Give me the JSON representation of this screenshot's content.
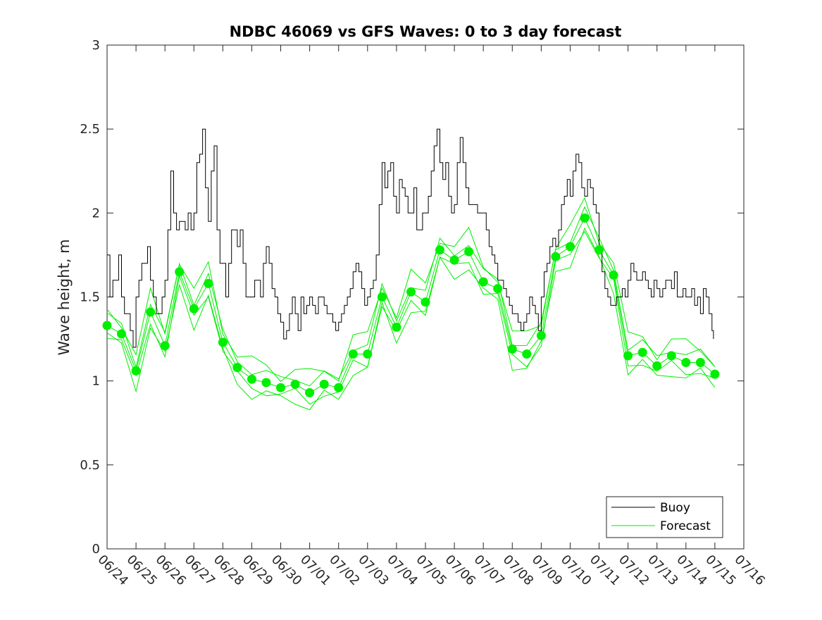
{
  "chart_data": {
    "type": "line",
    "title": "NDBC 46069 vs GFS Waves: 0 to 3 day forecast",
    "xlabel": "",
    "ylabel": "Wave height, m",
    "ylim": [
      0,
      3
    ],
    "xlim": [
      "06/24",
      "07/16"
    ],
    "x_tick_labels": [
      "06/24",
      "06/25",
      "06/26",
      "06/27",
      "06/28",
      "06/29",
      "06/30",
      "07/01",
      "07/02",
      "07/03",
      "07/04",
      "07/05",
      "07/06",
      "07/07",
      "07/08",
      "07/09",
      "07/10",
      "07/11",
      "07/12",
      "07/13",
      "07/14",
      "07/15",
      "07/16"
    ],
    "y_ticks": [
      0,
      0.5,
      1,
      1.5,
      2,
      2.5,
      3
    ],
    "y_tick_labels": [
      "0",
      "0.5",
      "1",
      "1.5",
      "2",
      "2.5",
      "3"
    ],
    "grid": false,
    "legend_position": "bottom-right",
    "colors": {
      "buoy": "#000000",
      "forecast": "#00ee00",
      "axis": "#262626"
    },
    "series": [
      {
        "name": "Buoy",
        "x_units": "days since 06/24",
        "points": [
          [
            0.0,
            1.75
          ],
          [
            0.1,
            1.5
          ],
          [
            0.2,
            1.6
          ],
          [
            0.3,
            1.6
          ],
          [
            0.4,
            1.75
          ],
          [
            0.5,
            1.5
          ],
          [
            0.6,
            1.4
          ],
          [
            0.7,
            1.4
          ],
          [
            0.8,
            1.3
          ],
          [
            0.9,
            1.2
          ],
          [
            1.0,
            1.5
          ],
          [
            1.1,
            1.6
          ],
          [
            1.2,
            1.7
          ],
          [
            1.3,
            1.7
          ],
          [
            1.4,
            1.8
          ],
          [
            1.5,
            1.6
          ],
          [
            1.6,
            1.5
          ],
          [
            1.7,
            1.4
          ],
          [
            1.8,
            1.4
          ],
          [
            1.9,
            1.5
          ],
          [
            2.0,
            1.6
          ],
          [
            2.1,
            1.9
          ],
          [
            2.2,
            2.25
          ],
          [
            2.3,
            2.0
          ],
          [
            2.4,
            1.9
          ],
          [
            2.5,
            1.95
          ],
          [
            2.6,
            1.95
          ],
          [
            2.7,
            1.9
          ],
          [
            2.8,
            2.0
          ],
          [
            2.9,
            1.9
          ],
          [
            3.0,
            2.0
          ],
          [
            3.1,
            2.3
          ],
          [
            3.2,
            2.35
          ],
          [
            3.3,
            2.5
          ],
          [
            3.4,
            2.15
          ],
          [
            3.5,
            1.95
          ],
          [
            3.6,
            2.25
          ],
          [
            3.7,
            2.4
          ],
          [
            3.8,
            1.9
          ],
          [
            3.9,
            1.7
          ],
          [
            4.0,
            1.7
          ],
          [
            4.1,
            1.5
          ],
          [
            4.2,
            1.7
          ],
          [
            4.3,
            1.9
          ],
          [
            4.4,
            1.9
          ],
          [
            4.5,
            1.8
          ],
          [
            4.6,
            1.9
          ],
          [
            4.7,
            1.7
          ],
          [
            4.8,
            1.5
          ],
          [
            4.9,
            1.5
          ],
          [
            5.0,
            1.5
          ],
          [
            5.1,
            1.6
          ],
          [
            5.2,
            1.6
          ],
          [
            5.3,
            1.5
          ],
          [
            5.4,
            1.7
          ],
          [
            5.5,
            1.8
          ],
          [
            5.6,
            1.7
          ],
          [
            5.7,
            1.55
          ],
          [
            5.8,
            1.5
          ],
          [
            5.9,
            1.4
          ],
          [
            6.0,
            1.35
          ],
          [
            6.1,
            1.25
          ],
          [
            6.2,
            1.3
          ],
          [
            6.3,
            1.4
          ],
          [
            6.4,
            1.5
          ],
          [
            6.5,
            1.4
          ],
          [
            6.6,
            1.3
          ],
          [
            6.7,
            1.5
          ],
          [
            6.8,
            1.4
          ],
          [
            6.9,
            1.45
          ],
          [
            7.0,
            1.5
          ],
          [
            7.1,
            1.45
          ],
          [
            7.2,
            1.4
          ],
          [
            7.3,
            1.5
          ],
          [
            7.4,
            1.5
          ],
          [
            7.5,
            1.45
          ],
          [
            7.6,
            1.4
          ],
          [
            7.7,
            1.4
          ],
          [
            7.8,
            1.35
          ],
          [
            7.9,
            1.3
          ],
          [
            8.0,
            1.35
          ],
          [
            8.1,
            1.4
          ],
          [
            8.2,
            1.45
          ],
          [
            8.3,
            1.5
          ],
          [
            8.4,
            1.55
          ],
          [
            8.5,
            1.65
          ],
          [
            8.6,
            1.7
          ],
          [
            8.7,
            1.65
          ],
          [
            8.8,
            1.55
          ],
          [
            8.9,
            1.45
          ],
          [
            9.0,
            1.5
          ],
          [
            9.1,
            1.55
          ],
          [
            9.2,
            1.6
          ],
          [
            9.3,
            1.75
          ],
          [
            9.4,
            2.05
          ],
          [
            9.5,
            2.3
          ],
          [
            9.6,
            2.15
          ],
          [
            9.7,
            2.25
          ],
          [
            9.8,
            2.3
          ],
          [
            9.9,
            2.1
          ],
          [
            10.0,
            2.0
          ],
          [
            10.1,
            2.2
          ],
          [
            10.2,
            2.15
          ],
          [
            10.3,
            2.1
          ],
          [
            10.4,
            2.0
          ],
          [
            10.5,
            2.0
          ],
          [
            10.6,
            2.15
          ],
          [
            10.7,
            1.9
          ],
          [
            10.8,
            1.9
          ],
          [
            10.9,
            2.0
          ],
          [
            11.0,
            2.0
          ],
          [
            11.1,
            2.1
          ],
          [
            11.2,
            2.25
          ],
          [
            11.3,
            2.4
          ],
          [
            11.4,
            2.5
          ],
          [
            11.5,
            2.3
          ],
          [
            11.6,
            2.2
          ],
          [
            11.7,
            2.3
          ],
          [
            11.8,
            2.1
          ],
          [
            11.9,
            2.0
          ],
          [
            12.0,
            2.05
          ],
          [
            12.1,
            2.3
          ],
          [
            12.2,
            2.45
          ],
          [
            12.3,
            2.3
          ],
          [
            12.4,
            2.15
          ],
          [
            12.5,
            2.05
          ],
          [
            12.6,
            2.05
          ],
          [
            12.7,
            2.05
          ],
          [
            12.8,
            2.0
          ],
          [
            12.9,
            2.0
          ],
          [
            13.0,
            2.0
          ],
          [
            13.1,
            1.9
          ],
          [
            13.2,
            1.8
          ],
          [
            13.3,
            1.75
          ],
          [
            13.4,
            1.7
          ],
          [
            13.5,
            1.6
          ],
          [
            13.6,
            1.6
          ],
          [
            13.7,
            1.55
          ],
          [
            13.8,
            1.5
          ],
          [
            13.9,
            1.45
          ],
          [
            14.0,
            1.4
          ],
          [
            14.1,
            1.4
          ],
          [
            14.2,
            1.35
          ],
          [
            14.3,
            1.3
          ],
          [
            14.4,
            1.35
          ],
          [
            14.5,
            1.4
          ],
          [
            14.6,
            1.5
          ],
          [
            14.7,
            1.45
          ],
          [
            14.8,
            1.4
          ],
          [
            14.9,
            1.3
          ],
          [
            15.0,
            1.5
          ],
          [
            15.1,
            1.65
          ],
          [
            15.2,
            1.7
          ],
          [
            15.3,
            1.8
          ],
          [
            15.4,
            1.85
          ],
          [
            15.5,
            1.8
          ],
          [
            15.6,
            1.9
          ],
          [
            15.7,
            2.05
          ],
          [
            15.8,
            2.1
          ],
          [
            15.9,
            2.2
          ],
          [
            16.0,
            2.1
          ],
          [
            16.1,
            2.25
          ],
          [
            16.2,
            2.35
          ],
          [
            16.3,
            2.3
          ],
          [
            16.4,
            2.15
          ],
          [
            16.5,
            2.1
          ],
          [
            16.6,
            2.2
          ],
          [
            16.7,
            2.15
          ],
          [
            16.8,
            2.05
          ],
          [
            16.9,
            2.0
          ],
          [
            17.0,
            1.8
          ],
          [
            17.1,
            1.65
          ],
          [
            17.2,
            1.55
          ],
          [
            17.3,
            1.5
          ],
          [
            17.4,
            1.45
          ],
          [
            17.5,
            1.45
          ],
          [
            17.6,
            1.5
          ],
          [
            17.7,
            1.5
          ],
          [
            17.8,
            1.55
          ],
          [
            17.9,
            1.5
          ],
          [
            18.0,
            1.6
          ],
          [
            18.1,
            1.7
          ],
          [
            18.2,
            1.65
          ],
          [
            18.3,
            1.6
          ],
          [
            18.4,
            1.6
          ],
          [
            18.5,
            1.65
          ],
          [
            18.6,
            1.6
          ],
          [
            18.7,
            1.55
          ],
          [
            18.8,
            1.5
          ],
          [
            18.9,
            1.6
          ],
          [
            19.0,
            1.55
          ],
          [
            19.1,
            1.5
          ],
          [
            19.2,
            1.55
          ],
          [
            19.3,
            1.6
          ],
          [
            19.4,
            1.6
          ],
          [
            19.5,
            1.55
          ],
          [
            19.6,
            1.65
          ],
          [
            19.7,
            1.5
          ],
          [
            19.8,
            1.5
          ],
          [
            19.9,
            1.55
          ],
          [
            20.0,
            1.5
          ],
          [
            20.1,
            1.5
          ],
          [
            20.2,
            1.55
          ],
          [
            20.3,
            1.45
          ],
          [
            20.4,
            1.5
          ],
          [
            20.5,
            1.4
          ],
          [
            20.6,
            1.55
          ],
          [
            20.7,
            1.5
          ],
          [
            20.8,
            1.4
          ],
          [
            20.9,
            1.3
          ],
          [
            20.95,
            1.25
          ]
        ]
      },
      {
        "name": "Forecast",
        "x_units": "days since 06/24",
        "points": [
          [
            0.0,
            1.33
          ],
          [
            0.5,
            1.28
          ],
          [
            1.0,
            1.06
          ],
          [
            1.5,
            1.41
          ],
          [
            2.0,
            1.21
          ],
          [
            2.5,
            1.65
          ],
          [
            3.0,
            1.43
          ],
          [
            3.5,
            1.58
          ],
          [
            4.0,
            1.23
          ],
          [
            4.5,
            1.08
          ],
          [
            5.0,
            1.01
          ],
          [
            5.5,
            0.99
          ],
          [
            6.0,
            0.96
          ],
          [
            6.5,
            0.98
          ],
          [
            7.0,
            0.93
          ],
          [
            7.5,
            0.98
          ],
          [
            8.0,
            0.96
          ],
          [
            8.5,
            1.16
          ],
          [
            9.0,
            1.16
          ],
          [
            9.5,
            1.5
          ],
          [
            10.0,
            1.32
          ],
          [
            10.5,
            1.53
          ],
          [
            11.0,
            1.47
          ],
          [
            11.5,
            1.78
          ],
          [
            12.0,
            1.72
          ],
          [
            12.5,
            1.77
          ],
          [
            13.0,
            1.59
          ],
          [
            13.5,
            1.55
          ],
          [
            14.0,
            1.19
          ],
          [
            14.5,
            1.16
          ],
          [
            15.0,
            1.27
          ],
          [
            15.5,
            1.74
          ],
          [
            16.0,
            1.8
          ],
          [
            16.5,
            1.97
          ],
          [
            17.0,
            1.78
          ],
          [
            17.5,
            1.63
          ],
          [
            18.0,
            1.15
          ],
          [
            18.5,
            1.17
          ],
          [
            19.0,
            1.09
          ],
          [
            19.5,
            1.15
          ],
          [
            20.0,
            1.11
          ],
          [
            20.5,
            1.11
          ],
          [
            21.0,
            1.04
          ]
        ]
      }
    ]
  },
  "legend": {
    "items": [
      {
        "label": "Buoy",
        "color": "#000000"
      },
      {
        "label": "Forecast",
        "color": "#00ee00"
      }
    ]
  }
}
